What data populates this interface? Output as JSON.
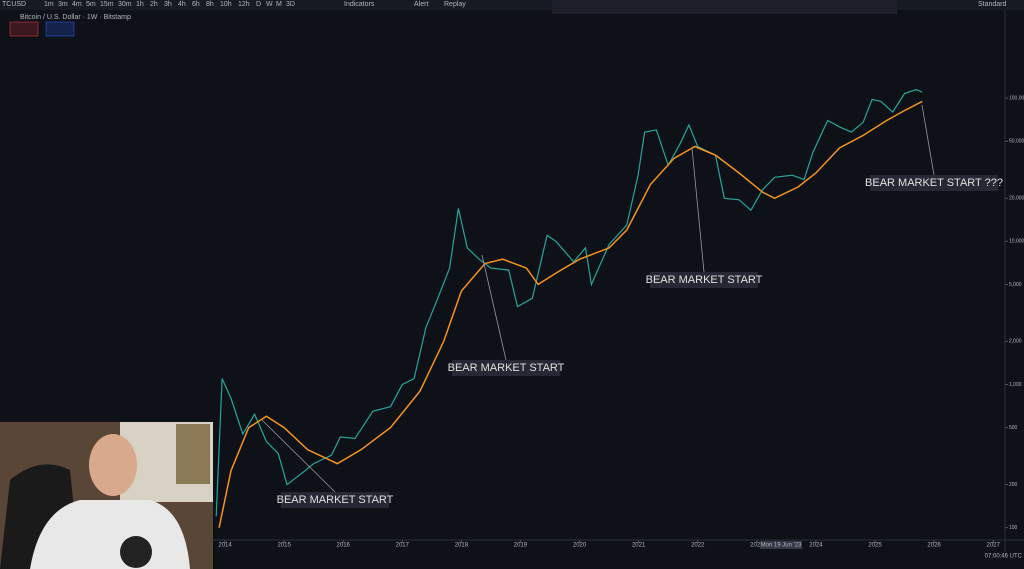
{
  "toolbar": {
    "symbol": "TCUSD",
    "intervals": [
      "1m",
      "3m",
      "4m",
      "5m",
      "15m",
      "30m",
      "1h",
      "2h",
      "3h",
      "4h",
      "6h",
      "8h",
      "10h",
      "12h",
      "D",
      "W",
      "M",
      "3D"
    ],
    "indicators": "Indicators",
    "alert": "Alert",
    "replay": "Replay",
    "layout": "Standard"
  },
  "chart_data": {
    "type": "line",
    "title": "Bitcoin / U.S. Dollar · 1W · Bitstamp",
    "log_scale": true,
    "xlim": [
      2013.83,
      2027.2
    ],
    "xticks": [
      2014,
      2015,
      2016,
      2017,
      2018,
      2019,
      2020,
      2021,
      2022,
      2023,
      2024,
      2025,
      2026,
      2027
    ],
    "ylim": [
      82,
      400000
    ],
    "yticks": [
      100,
      200,
      500,
      {
        "value": 1000,
        "label": "1,000"
      },
      {
        "value": 2000,
        "label": "2,000"
      },
      {
        "value": 5000,
        "label": "5,000"
      },
      {
        "value": 10000,
        "label": "10,000"
      },
      {
        "value": 20000,
        "label": "20,000"
      },
      {
        "value": 50000,
        "label": "50,000"
      },
      {
        "value": 100000,
        "label": "100,000"
      }
    ],
    "crosshair_label": "Mon 19 Jun '23",
    "clock": "07:00:46 UTC",
    "series": [
      {
        "color": "#26a69a",
        "x": [
          2013.85,
          2013.95,
          2014.1,
          2014.3,
          2014.5,
          2014.7,
          2014.9,
          2015.05,
          2015.3,
          2015.5,
          2015.8,
          2015.95,
          2016.2,
          2016.5,
          2016.8,
          2017.0,
          2017.2,
          2017.4,
          2017.6,
          2017.8,
          2017.95,
          2018.1,
          2018.3,
          2018.5,
          2018.8,
          2018.95,
          2019.2,
          2019.45,
          2019.6,
          2019.9,
          2020.1,
          2020.2,
          2020.5,
          2020.8,
          2020.99,
          2021.1,
          2021.3,
          2021.5,
          2021.7,
          2021.85,
          2022.0,
          2022.3,
          2022.45,
          2022.7,
          2022.9,
          2023.1,
          2023.3,
          2023.6,
          2023.8,
          2023.95,
          2024.2,
          2024.4,
          2024.6,
          2024.8,
          2024.95,
          2025.1,
          2025.3,
          2025.5,
          2025.7,
          2025.8
        ],
        "values": [
          120,
          1100,
          800,
          450,
          620,
          400,
          330,
          200,
          240,
          280,
          320,
          430,
          420,
          650,
          700,
          1000,
          1100,
          2500,
          4000,
          6500,
          17000,
          9000,
          7500,
          6500,
          6300,
          3500,
          4000,
          11000,
          10000,
          7200,
          9000,
          5000,
          9500,
          13000,
          29000,
          58000,
          60000,
          34000,
          48000,
          65000,
          46000,
          40000,
          20000,
          19500,
          16500,
          23000,
          28000,
          29000,
          27000,
          42000,
          70000,
          63000,
          58000,
          68000,
          98000,
          95000,
          80000,
          108000,
          115000,
          110000
        ]
      },
      {
        "color": "#f7931a",
        "x": [
          2013.9,
          2014.1,
          2014.4,
          2014.7,
          2015.0,
          2015.4,
          2015.9,
          2016.3,
          2016.8,
          2017.3,
          2017.7,
          2018.0,
          2018.4,
          2018.7,
          2019.1,
          2019.3,
          2019.6,
          2020.0,
          2020.5,
          2020.8,
          2021.2,
          2021.6,
          2021.95,
          2022.3,
          2022.7,
          2023.1,
          2023.3,
          2023.7,
          2024.0,
          2024.4,
          2024.8,
          2025.2,
          2025.5,
          2025.8
        ],
        "values": [
          100,
          250,
          500,
          600,
          500,
          350,
          280,
          350,
          500,
          900,
          2000,
          4500,
          7000,
          7500,
          6500,
          5000,
          6000,
          7500,
          9000,
          12000,
          25000,
          38000,
          46000,
          40000,
          30000,
          22000,
          20000,
          24000,
          30000,
          45000,
          55000,
          70000,
          82000,
          95000
        ]
      }
    ],
    "annotations": [
      "BEAR MARKET START",
      "BEAR MARKET START",
      "BEAR MARKET START",
      "BEAR MARKET START ???"
    ]
  }
}
